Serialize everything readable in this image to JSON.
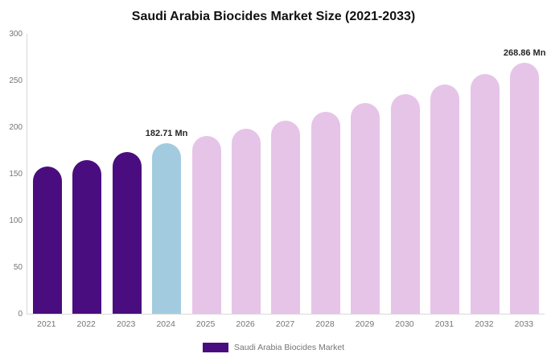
{
  "chart_data": {
    "type": "bar",
    "title": "Saudi Arabia Biocides Market Size (2021-2033)",
    "categories": [
      "2021",
      "2022",
      "2023",
      "2024",
      "2025",
      "2026",
      "2027",
      "2028",
      "2029",
      "2030",
      "2031",
      "2032",
      "2033"
    ],
    "values": [
      158,
      165,
      173,
      182.71,
      190.5,
      198.5,
      207,
      216,
      225.5,
      235.5,
      245.5,
      256.5,
      268.86
    ],
    "bar_colors": [
      "#4a0d7f",
      "#4a0d7f",
      "#4a0d7f",
      "#a3cbe0",
      "#e6c4e8",
      "#e6c4e8",
      "#e6c4e8",
      "#e6c4e8",
      "#e6c4e8",
      "#e6c4e8",
      "#e6c4e8",
      "#e6c4e8",
      "#e6c4e8"
    ],
    "annotations": [
      {
        "index": 3,
        "text": "182.71 Mn"
      },
      {
        "index": 12,
        "text": "268.86 Mn"
      }
    ],
    "ylim": [
      0,
      300
    ],
    "yticks": [
      300,
      250,
      200,
      150,
      100,
      50,
      0
    ],
    "grid": false,
    "xlabel": "",
    "ylabel": "",
    "legend": {
      "label": "Saudi Arabia Biocides Market",
      "swatch_color": "#4a0d7f",
      "position": "bottom"
    },
    "colors": {
      "historical": "#4a0d7f",
      "current_year_highlight": "#a3cbe0",
      "forecast": "#e6c4e8",
      "axis_line": "#d9d9d9",
      "tick_text": "#757575",
      "annotation_text": "#262626",
      "background": "#ffffff"
    }
  }
}
